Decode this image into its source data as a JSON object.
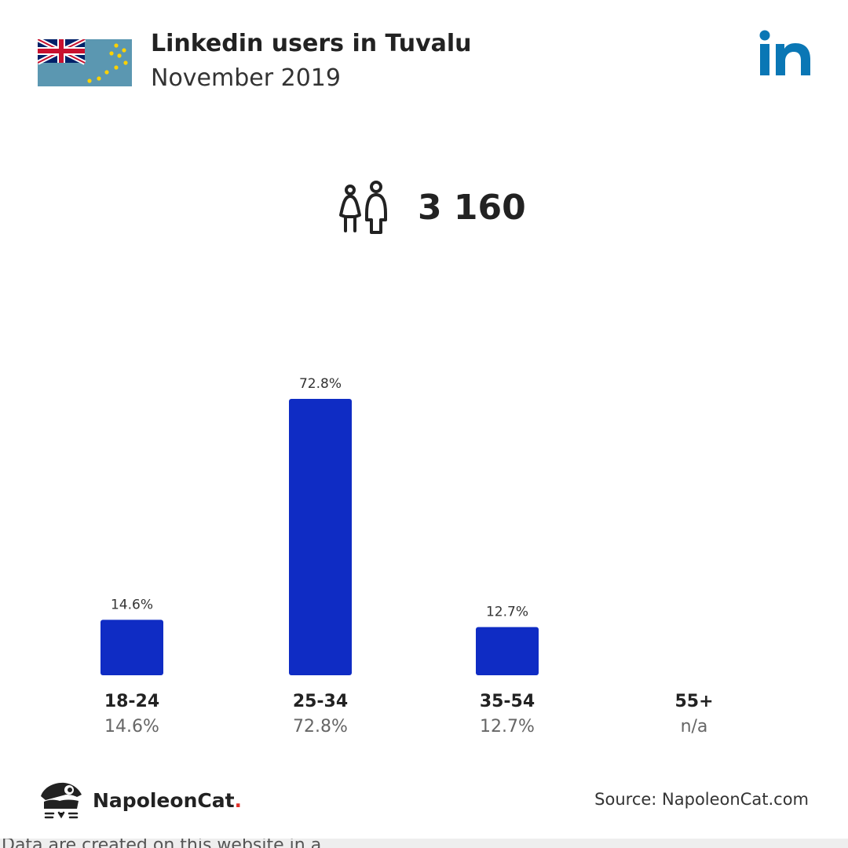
{
  "header": {
    "title": "Linkedin users in Tuvalu",
    "subtitle": "November 2019"
  },
  "icons": {
    "flag": "tuvalu-flag-icon",
    "linkedin": "linkedin-logo-icon",
    "users": "people-icon",
    "brand": "napoleoncat-logo-icon"
  },
  "stat": {
    "total_users": "3 160"
  },
  "colors": {
    "bar": "#0f2cc4",
    "linkedin": "#0a77b5",
    "flag_bg": "#5b97b1",
    "brand_dot": "#e0302a"
  },
  "chart_data": {
    "type": "bar",
    "categories": [
      "18-24",
      "25-34",
      "35-54",
      "55+"
    ],
    "values": [
      14.6,
      72.8,
      12.7,
      null
    ],
    "value_labels": [
      "14.6%",
      "72.8%",
      "12.7%",
      "n/a"
    ],
    "title": "",
    "xlabel": "",
    "ylabel": "",
    "ylim": [
      0,
      72.8
    ],
    "grid": false
  },
  "footer": {
    "brand_name": "NapoleonCat",
    "brand_dot": ".",
    "source": "Source: NapoleonCat.com",
    "cut_text": "Data are created on this website in a....."
  }
}
